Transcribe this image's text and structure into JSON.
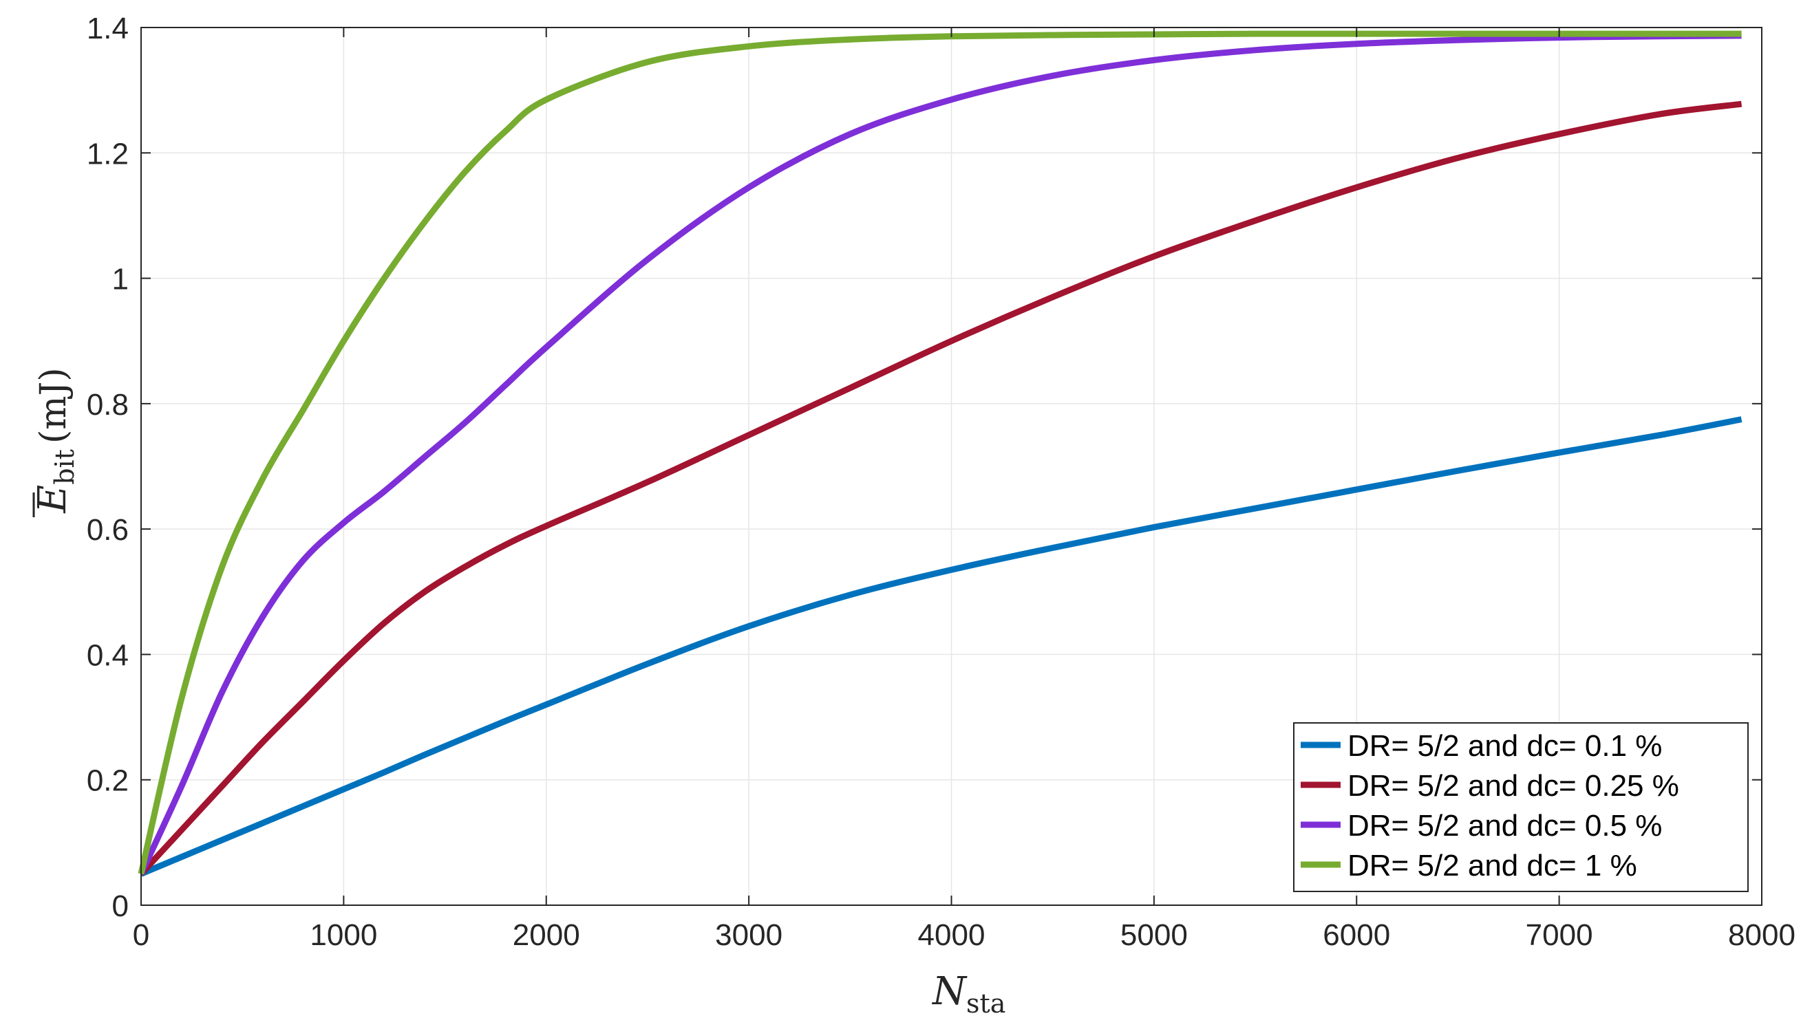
{
  "chart_data": {
    "type": "line",
    "xlim": [
      0,
      8000
    ],
    "ylim": [
      0,
      1.4
    ],
    "x_ticks": [
      0,
      1000,
      2000,
      3000,
      4000,
      5000,
      6000,
      7000,
      8000
    ],
    "x_tick_labels": [
      "0",
      "1000",
      "2000",
      "3000",
      "4000",
      "5000",
      "6000",
      "7000",
      "8000"
    ],
    "y_ticks": [
      0,
      0.2,
      0.4,
      0.6,
      0.8,
      1.0,
      1.2,
      1.4
    ],
    "y_tick_labels": [
      "0",
      "0.2",
      "0.4",
      "0.6",
      "0.8",
      "1",
      "1.2",
      "1.4"
    ],
    "grid": true,
    "legend_position": "bottom-right",
    "xlabel": {
      "base": "N",
      "sub": "sta"
    },
    "ylabel": {
      "base": "E",
      "sub": "bit",
      "unit": "(mJ)",
      "overline": true
    },
    "x": [
      0,
      200,
      400,
      600,
      800,
      1000,
      1200,
      1400,
      1600,
      1800,
      2000,
      2500,
      3000,
      3500,
      4000,
      4500,
      5000,
      5500,
      6000,
      6500,
      7000,
      7500,
      7900
    ],
    "series": [
      {
        "name": "DR= 5/2 and dc= 0.1 %",
        "color": "#0072BD",
        "values": [
          0.05,
          0.077,
          0.104,
          0.131,
          0.158,
          0.185,
          0.212,
          0.24,
          0.267,
          0.294,
          0.32,
          0.385,
          0.445,
          0.495,
          0.535,
          0.57,
          0.603,
          0.633,
          0.663,
          0.693,
          0.722,
          0.75,
          0.775
        ]
      },
      {
        "name": "DR= 5/2 and dc= 0.25 %",
        "color": "#A2142F",
        "values": [
          0.05,
          0.12,
          0.19,
          0.26,
          0.325,
          0.39,
          0.45,
          0.5,
          0.54,
          0.575,
          0.605,
          0.675,
          0.75,
          0.825,
          0.9,
          0.97,
          1.035,
          1.092,
          1.145,
          1.192,
          1.23,
          1.262,
          1.278
        ]
      },
      {
        "name": "DR= 5/2 and dc= 0.5 %",
        "color": "#7E2FD8",
        "values": [
          0.05,
          0.19,
          0.34,
          0.46,
          0.55,
          0.61,
          0.66,
          0.715,
          0.77,
          0.83,
          0.89,
          1.03,
          1.145,
          1.23,
          1.285,
          1.323,
          1.348,
          1.364,
          1.374,
          1.38,
          1.384,
          1.386,
          1.387
        ]
      },
      {
        "name": "DR= 5/2 and dc= 1 %",
        "color": "#77AC30",
        "values": [
          0.05,
          0.33,
          0.54,
          0.68,
          0.79,
          0.9,
          1.0,
          1.09,
          1.17,
          1.235,
          1.285,
          1.345,
          1.37,
          1.381,
          1.386,
          1.388,
          1.389,
          1.39,
          1.39,
          1.39,
          1.39,
          1.39,
          1.39
        ]
      }
    ]
  }
}
